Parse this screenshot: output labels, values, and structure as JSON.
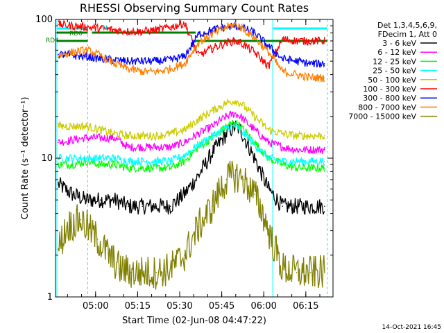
{
  "chart_data": {
    "type": "line",
    "title": "RHESSI Observing Summary Count Rates",
    "xlabel": "Start Time (02-Jun-08 04:47:22)",
    "ylabel": "Count Rate (s⁻¹ detector⁻¹)",
    "yscale": "log",
    "ylim": [
      1,
      100
    ],
    "y_tick_labels": [
      "1",
      "10",
      "100"
    ],
    "xlim_minutes": [
      -1,
      98
    ],
    "x_ticks": [
      {
        "minute": 13.3,
        "label": "05:00"
      },
      {
        "minute": 28.3,
        "label": "05:15"
      },
      {
        "minute": 43.3,
        "label": "05:30"
      },
      {
        "minute": 58.3,
        "label": "05:45"
      },
      {
        "minute": 73.3,
        "label": "06:00"
      },
      {
        "minute": 88.3,
        "label": "06:15"
      }
    ],
    "legend_header": [
      "Det 1,3,4,5,6,9,",
      "FDecim 1, Att 0"
    ],
    "legend_position": "right",
    "footer_date": "14-Oct-2021 16:45",
    "annotations": {
      "rd0": "RD0",
      "rd4": "RD4",
      "n": "N"
    },
    "series": [
      {
        "name": "3 - 6 keV",
        "color": "#000000",
        "x": [
          0,
          5,
          10,
          15,
          20,
          25,
          30,
          35,
          40,
          45,
          50,
          55,
          60,
          63,
          65,
          70,
          75,
          80,
          85,
          90,
          95
        ],
        "y": [
          6.5,
          5.5,
          5,
          5,
          5,
          4.5,
          4.5,
          4.5,
          4.5,
          5.5,
          7.5,
          11,
          15,
          17,
          16,
          10,
          6,
          4.5,
          4.5,
          4.5,
          4.5
        ]
      },
      {
        "name": "6 - 12 keV",
        "color": "#ff00ff",
        "x": [
          0,
          5,
          10,
          15,
          20,
          25,
          30,
          35,
          40,
          45,
          50,
          55,
          60,
          63,
          65,
          70,
          75,
          80,
          85,
          90,
          95
        ],
        "y": [
          13,
          13.5,
          14,
          14,
          14,
          12,
          12,
          12,
          12,
          13,
          15,
          17,
          20,
          21,
          20,
          16,
          13,
          12,
          11.5,
          11.5,
          11.5
        ]
      },
      {
        "name": "12 - 25 keV",
        "color": "#00ff00",
        "x": [
          0,
          5,
          10,
          15,
          20,
          25,
          30,
          35,
          40,
          45,
          50,
          55,
          60,
          63,
          65,
          70,
          75,
          80,
          85,
          90,
          95
        ],
        "y": [
          9,
          9,
          9.5,
          9,
          9,
          8.5,
          8.5,
          8.5,
          8.5,
          9.5,
          12,
          14,
          17,
          18,
          17,
          13,
          10,
          9,
          8.5,
          8.5,
          8.5
        ]
      },
      {
        "name": "25 - 50 keV",
        "color": "#00ffff",
        "x": [
          0,
          5,
          10,
          15,
          20,
          25,
          30,
          35,
          40,
          45,
          50,
          55,
          60,
          63,
          65,
          70,
          75,
          80,
          85,
          90,
          95
        ],
        "y": [
          10,
          10,
          10,
          10,
          10,
          9.5,
          9.5,
          9.5,
          9.5,
          10.5,
          12.5,
          14.5,
          16.5,
          17,
          16,
          12.5,
          10,
          9.5,
          9.5,
          9.5,
          9.5
        ]
      },
      {
        "name": "50 - 100 keV",
        "color": "#cccc00",
        "x": [
          0,
          5,
          10,
          15,
          20,
          25,
          30,
          35,
          40,
          45,
          50,
          55,
          60,
          63,
          65,
          70,
          75,
          80,
          85,
          90,
          95
        ],
        "y": [
          17,
          17,
          17,
          16,
          15,
          14.5,
          14.5,
          14.5,
          15,
          16,
          19,
          22,
          25,
          26,
          25,
          20,
          16,
          15,
          14.5,
          14.5,
          14.5
        ]
      },
      {
        "name": "100 - 300 keV",
        "color": "#ff0000",
        "x": [
          0,
          5,
          10,
          15,
          20,
          25,
          30,
          35,
          40,
          45,
          50,
          55,
          60,
          63,
          65,
          70,
          75,
          80,
          85,
          90,
          95
        ],
        "y": [
          92,
          90,
          88,
          86,
          84,
          82,
          82,
          84,
          88,
          94,
          55,
          62,
          68,
          70,
          68,
          58,
          46,
          72,
          70,
          70,
          70
        ]
      },
      {
        "name": "300 - 800 keV",
        "color": "#0000ff",
        "x": [
          0,
          5,
          10,
          15,
          20,
          25,
          30,
          35,
          40,
          45,
          50,
          55,
          60,
          63,
          65,
          70,
          75,
          80,
          85,
          90,
          95
        ],
        "y": [
          56,
          55,
          54,
          52,
          51,
          50,
          50,
          50,
          51,
          54,
          78,
          84,
          88,
          90,
          88,
          80,
          64,
          52,
          50,
          48,
          48
        ]
      },
      {
        "name": "800 - 7000 keV",
        "color": "#ff8000",
        "x": [
          0,
          5,
          10,
          15,
          20,
          25,
          30,
          35,
          40,
          45,
          50,
          55,
          60,
          63,
          65,
          70,
          75,
          80,
          85,
          90,
          95
        ],
        "y": [
          55,
          58,
          60,
          55,
          48,
          44,
          42,
          42,
          44,
          48,
          68,
          78,
          88,
          92,
          88,
          74,
          58,
          42,
          40,
          38,
          38
        ]
      },
      {
        "name": "7000 - 15000 keV",
        "color": "#808000",
        "x": [
          0,
          3,
          8,
          14,
          18,
          22,
          26,
          30,
          35,
          40,
          45,
          50,
          55,
          58,
          60,
          63,
          66,
          70,
          73,
          76,
          80,
          85,
          90,
          95
        ],
        "y": [
          2.2,
          3.2,
          3.6,
          2.6,
          2.0,
          1.6,
          1.5,
          1.5,
          1.5,
          1.6,
          2.0,
          3.2,
          4.5,
          6.0,
          7.0,
          7.5,
          7.0,
          5.5,
          4.0,
          2.6,
          1.6,
          1.5,
          1.5,
          1.5
        ]
      }
    ]
  }
}
